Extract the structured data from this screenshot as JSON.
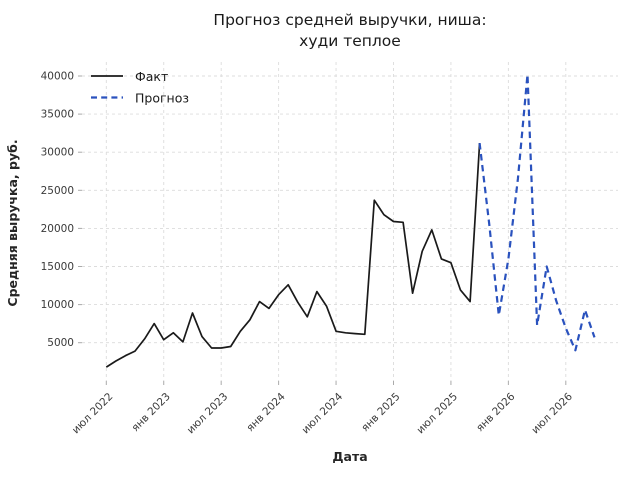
{
  "colors": {
    "fact": "#1a1a1a",
    "forecast": "#2a52be",
    "grid": "#dcdcdc",
    "tick": "#aaaaaa",
    "title_text": "#1a1a1a",
    "axis_label_text": "#262626",
    "tick_label_text": "#3a3a3a",
    "background": "#ffffff"
  },
  "chart_data": {
    "type": "line",
    "title": "Прогноз средней выручки, ниша: худи теплое",
    "title_lines": [
      "Прогноз средней выручки, ниша:",
      "худи теплое"
    ],
    "xlabel": "Дата",
    "ylabel": "Средняя выручка, руб.",
    "grid": true,
    "grid_style": "dashed",
    "legend_position": "upper left",
    "x_tick_labels": [
      "июл 2022",
      "янв 2023",
      "июл 2023",
      "янв 2024",
      "июл 2024",
      "янв 2025",
      "июл 2025",
      "янв 2026",
      "июл 2026"
    ],
    "x_tick_interval_months": 6,
    "y_ticks": [
      5000,
      10000,
      15000,
      20000,
      25000,
      30000,
      35000,
      40000
    ],
    "ylim": [
      0,
      42000
    ],
    "series": [
      {
        "name": "Факт",
        "style": "solid",
        "color_key": "fact",
        "months": [
          "2022-07",
          "2022-08",
          "2022-09",
          "2022-10",
          "2022-11",
          "2022-12",
          "2023-01",
          "2023-02",
          "2023-03",
          "2023-04",
          "2023-05",
          "2023-06",
          "2023-07",
          "2023-08",
          "2023-09",
          "2023-10",
          "2023-11",
          "2023-12",
          "2024-01",
          "2024-02",
          "2024-03",
          "2024-04",
          "2024-05",
          "2024-06",
          "2024-07",
          "2024-08",
          "2024-09",
          "2024-10",
          "2024-11",
          "2024-12",
          "2025-01",
          "2025-02",
          "2025-03",
          "2025-04",
          "2025-05",
          "2025-06",
          "2025-07",
          "2025-08",
          "2025-09",
          "2025-10"
        ],
        "values": [
          1800,
          2600,
          3300,
          3900,
          5500,
          7500,
          5400,
          6300,
          5100,
          8900,
          5800,
          4300,
          4300,
          4500,
          6500,
          8000,
          10400,
          9500,
          11300,
          12600,
          10300,
          8400,
          11700,
          9800,
          6500,
          6300,
          6200,
          6100,
          23700,
          21800,
          20900,
          20800,
          11500,
          17000,
          19800,
          16000,
          15500,
          11900,
          10400,
          31200
        ]
      },
      {
        "name": "Прогноз",
        "style": "dashed",
        "color_key": "forecast",
        "months": [
          "2025-10",
          "2025-11",
          "2025-12",
          "2026-01",
          "2026-02",
          "2026-03",
          "2026-04",
          "2026-05",
          "2026-06",
          "2026-07",
          "2026-08",
          "2026-09",
          "2026-10"
        ],
        "values": [
          31200,
          20600,
          8600,
          16000,
          26500,
          40200,
          7300,
          15000,
          10500,
          6900,
          4000,
          9300,
          5700
        ]
      }
    ]
  }
}
